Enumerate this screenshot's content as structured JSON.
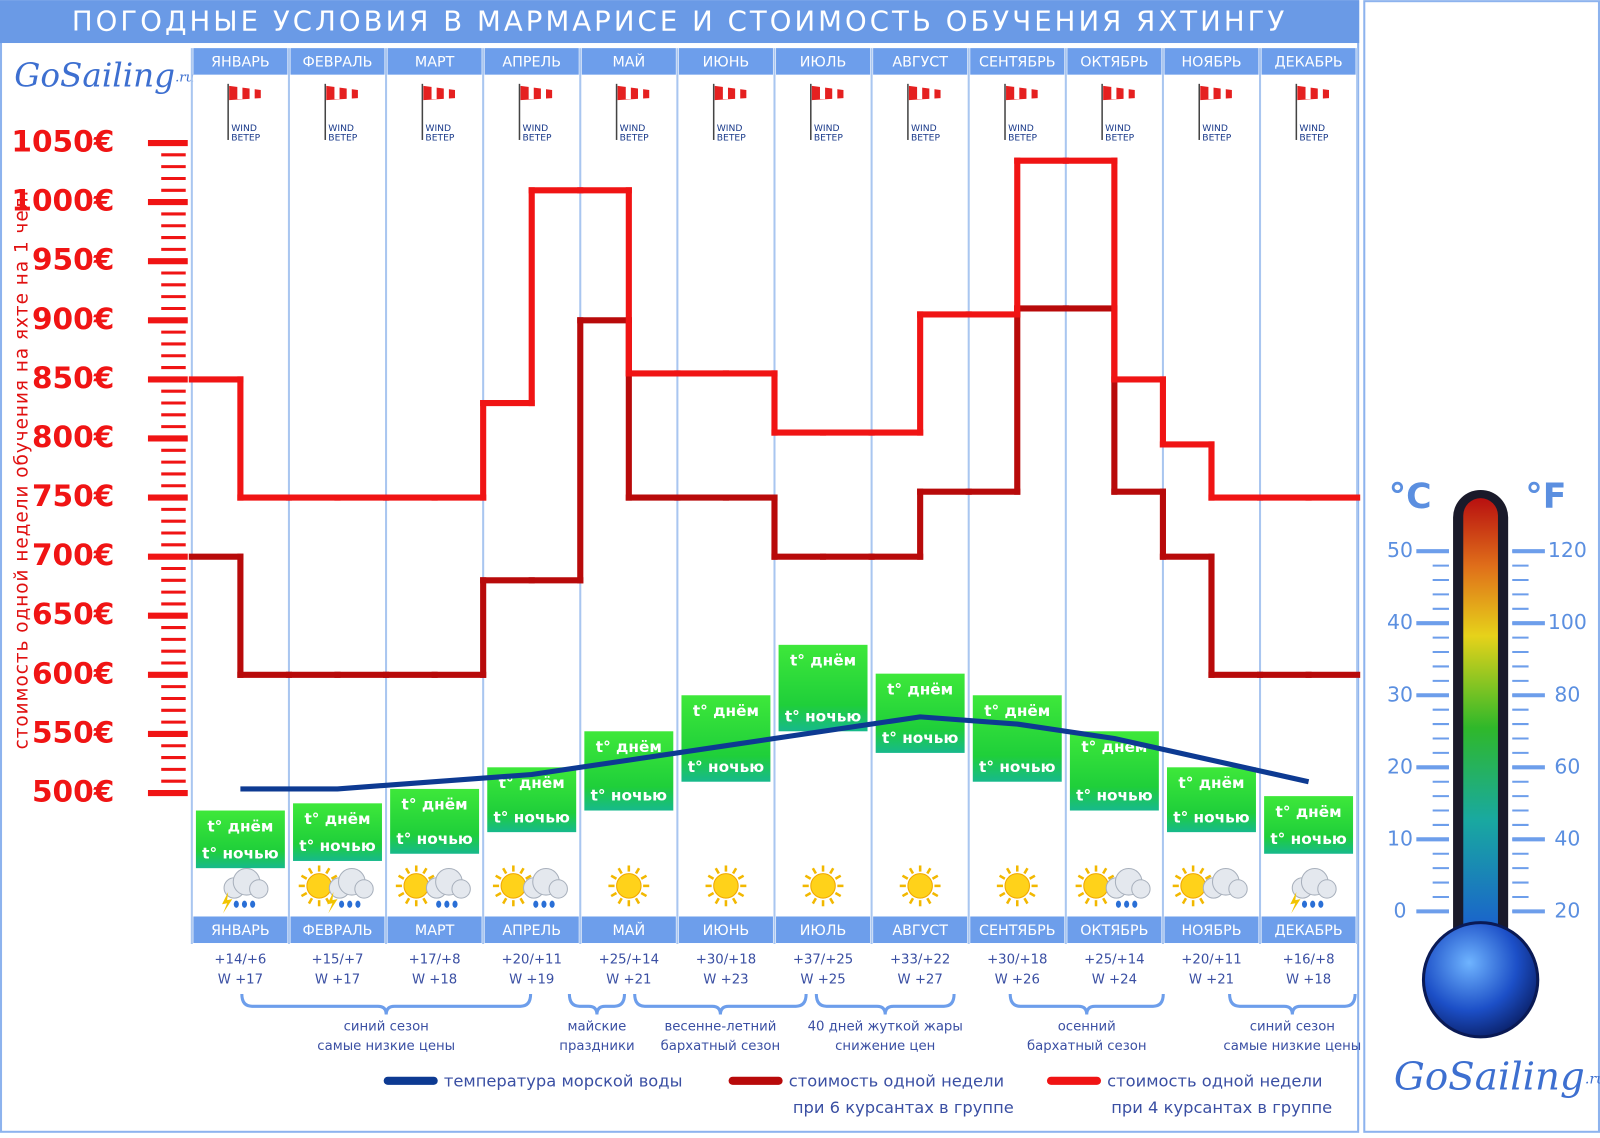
{
  "chart_data": {
    "type": "line",
    "title": "ПОГОДНЫЕ УСЛОВИЯ В МАРМАРИСЕ И СТОИМОСТЬ ОБУЧЕНИЯ ЯХТИНГУ",
    "y_label": "стоимость одной недели обучения на яхте на 1 чел.",
    "categories": [
      "ЯНВАРЬ",
      "ФЕВРАЛЬ",
      "МАРТ",
      "АПРЕЛЬ",
      "МАЙ",
      "ИЮНЬ",
      "ИЮЛЬ",
      "АВГУСТ",
      "СЕНТЯБРЬ",
      "ОКТЯБРЬ",
      "НОЯБРЬ",
      "ДЕКАБРЬ"
    ],
    "ylim": [
      500,
      1050
    ],
    "yticks": [
      {
        "value": 500,
        "label": "500€"
      },
      {
        "value": 550,
        "label": "550€"
      },
      {
        "value": 600,
        "label": "600€"
      },
      {
        "value": 650,
        "label": "650€"
      },
      {
        "value": 700,
        "label": "700€"
      },
      {
        "value": 750,
        "label": "750€"
      },
      {
        "value": 800,
        "label": "800€"
      },
      {
        "value": 850,
        "label": "850€"
      },
      {
        "value": 900,
        "label": "900€"
      },
      {
        "value": 950,
        "label": "950€"
      },
      {
        "value": 1000,
        "label": "1000€"
      },
      {
        "value": 1050,
        "label": "1050€"
      }
    ],
    "series": [
      {
        "name": [
          "температура морской воды"
        ],
        "color": "#0d3a92",
        "axis": "y2",
        "values": [
          17,
          17,
          18,
          19,
          21,
          23,
          25,
          27,
          26,
          24,
          21,
          18
        ],
        "value_labels": [
          "W +17",
          "W +17",
          "W +18",
          "W +19",
          "W +21",
          "W +23",
          "W +25",
          "W +27",
          "W +26",
          "W +24",
          "W +21",
          "W +18"
        ]
      },
      {
        "name": [
          "стоимость одной недели",
          "при 6 курсантах в группе"
        ],
        "color": "#b80a0a",
        "step": true,
        "values": [
          [
            700,
            600
          ],
          [
            600,
            600
          ],
          [
            600,
            600
          ],
          [
            680,
            680
          ],
          [
            900,
            750
          ],
          [
            750,
            750
          ],
          [
            700,
            700
          ],
          [
            700,
            755
          ],
          [
            755,
            910
          ],
          [
            910,
            755
          ],
          [
            700,
            600
          ],
          [
            600,
            600
          ]
        ]
      },
      {
        "name": [
          "стоимость одной недели",
          "при 4 курсантах в группе"
        ],
        "color": "#f01414",
        "step": true,
        "values": [
          [
            850,
            750
          ],
          [
            750,
            750
          ],
          [
            750,
            750
          ],
          [
            830,
            1010
          ],
          [
            1010,
            855
          ],
          [
            855,
            855
          ],
          [
            805,
            805
          ],
          [
            805,
            905
          ],
          [
            905,
            1035
          ],
          [
            1035,
            850
          ],
          [
            795,
            750
          ],
          [
            750,
            750
          ]
        ]
      }
    ],
    "air_temp": {
      "day": [
        14,
        15,
        17,
        20,
        25,
        30,
        37,
        33,
        30,
        25,
        20,
        16
      ],
      "night": [
        6,
        7,
        8,
        11,
        14,
        18,
        25,
        22,
        18,
        14,
        11,
        8
      ],
      "labels": [
        "+14/+6",
        "+15/+7",
        "+17/+8",
        "+20/+11",
        "+25/+14",
        "+30/+18",
        "+37/+25",
        "+33/+22",
        "+30/+18",
        "+25/+14",
        "+20/+11",
        "+16/+8"
      ],
      "day_label": "t° днём",
      "night_label": "t° ночью"
    },
    "wind_label": [
      "WIND",
      "ВЕТЕР"
    ],
    "annotations": [
      [
        "синий сезон",
        "самые низкие цены"
      ],
      [
        "майские",
        "праздники"
      ],
      [
        "весенне-летний",
        "бархатный сезон"
      ],
      [
        "40 дней жуткой жары",
        "снижение  цен"
      ],
      [
        "осенний",
        "бархатный сезон"
      ],
      [
        "синий сезон",
        "самые низкие цены"
      ]
    ],
    "y2_label": "°C",
    "y2lim": [
      0,
      50
    ],
    "y2ticks": [
      0,
      10,
      20,
      30,
      40,
      50
    ],
    "y3_label": "°F",
    "y3lim": [
      20,
      120
    ],
    "y3ticks": [
      20,
      40,
      60,
      80,
      100,
      120
    ],
    "logo": "GoSailing",
    "logo_suffix": ".ru"
  }
}
